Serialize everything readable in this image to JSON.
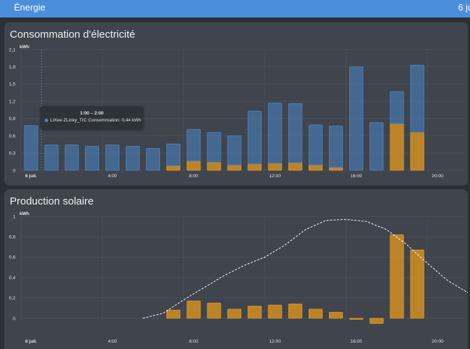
{
  "header": {
    "title": "Énergie",
    "date": "6 ju"
  },
  "colors": {
    "grid_consumption": "#4a86c8",
    "solar": "#e59a1e",
    "forecast": "#ffffff"
  },
  "consumption": {
    "title": "Consommation d'électricité",
    "tooltip": {
      "title": "1:00 – 2:00",
      "text": "LiXee ZLinky_TIC Consommation: 0,44 kWh"
    }
  },
  "solar": {
    "title": "Production solaire"
  },
  "chart_data": [
    {
      "type": "bar",
      "title": "Consommation d'électricité",
      "ylabel": "kWh",
      "ylim": [
        0,
        2.1
      ],
      "yticks": [
        "0",
        "0,3",
        "0,6",
        "0,9",
        "1,2",
        "1,5",
        "1,8",
        "2,1"
      ],
      "xticks": [
        {
          "label": "6 juil.",
          "hour": 0
        },
        {
          "label": "4:00",
          "hour": 4
        },
        {
          "label": "8:00",
          "hour": 8
        },
        {
          "label": "12:00",
          "hour": 12
        },
        {
          "label": "16:00",
          "hour": 16
        },
        {
          "label": "20:00",
          "hour": 20
        }
      ],
      "hours": [
        0,
        1,
        2,
        3,
        4,
        5,
        6,
        7,
        8,
        9,
        10,
        11,
        12,
        13,
        14,
        15,
        16,
        17,
        18,
        19
      ],
      "stacked": true,
      "series": [
        {
          "name": "LiXee ZLinky_TIC Consommation",
          "values": [
            0.78,
            0.44,
            0.44,
            0.42,
            0.44,
            0.42,
            0.38,
            0.38,
            0.55,
            0.52,
            0.51,
            0.92,
            1.05,
            1.03,
            0.7,
            0.72,
            1.8,
            0.83,
            0.56,
            1.17
          ]
        },
        {
          "values": [
            0,
            0,
            0,
            0,
            0,
            0,
            0,
            0.08,
            0.16,
            0.14,
            0.09,
            0.11,
            0.12,
            0.13,
            0.09,
            0.05,
            0,
            0,
            0.81,
            0.66
          ]
        }
      ]
    },
    {
      "type": "bar",
      "title": "Production solaire",
      "ylabel": "kWh",
      "ylim": [
        -0.05,
        1
      ],
      "yticks": [
        "0",
        "0,2",
        "0,4",
        "0,6",
        "0,8",
        "1"
      ],
      "xticks": [
        {
          "label": "6 juil.",
          "hour": 0
        },
        {
          "label": "4:00",
          "hour": 4
        },
        {
          "label": "8:00",
          "hour": 8
        },
        {
          "label": "12:00",
          "hour": 12
        },
        {
          "label": "16:00",
          "hour": 16
        },
        {
          "label": "20:00",
          "hour": 20
        }
      ],
      "hours": [
        7,
        8,
        9,
        10,
        11,
        12,
        13,
        14,
        15,
        16,
        17,
        18,
        19
      ],
      "series": [
        {
          "values": [
            0.08,
            0.17,
            0.15,
            0.09,
            0.12,
            0.13,
            0.14,
            0.09,
            0.06,
            -0.01,
            -0.05,
            0.82,
            0.67
          ]
        },
        {
          "type": "line",
          "dashed": true,
          "points": [
            [
              6.0,
              0.0
            ],
            [
              7.0,
              0.05
            ],
            [
              8.0,
              0.18
            ],
            [
              9.0,
              0.3
            ],
            [
              10.0,
              0.42
            ],
            [
              11.0,
              0.52
            ],
            [
              12.0,
              0.6
            ],
            [
              13.0,
              0.72
            ],
            [
              14.0,
              0.87
            ],
            [
              15.0,
              0.96
            ],
            [
              16.0,
              0.97
            ],
            [
              17.0,
              0.95
            ],
            [
              18.0,
              0.87
            ],
            [
              19.0,
              0.72
            ],
            [
              20.0,
              0.54
            ],
            [
              21.0,
              0.37
            ],
            [
              22.0,
              0.25
            ]
          ]
        }
      ]
    }
  ]
}
